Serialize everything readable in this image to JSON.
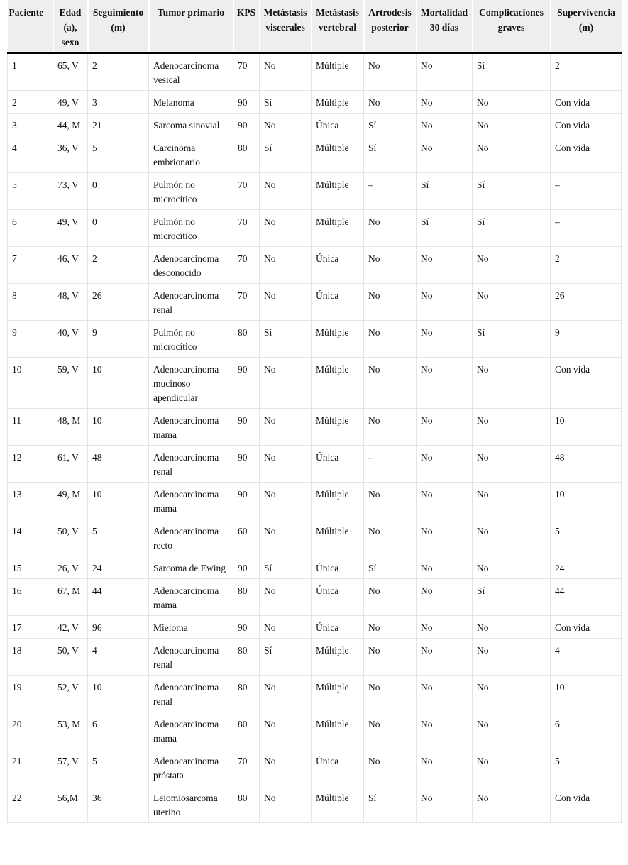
{
  "headers": [
    "Paciente",
    "Edad (a), sexo",
    "Seguimiento (m)",
    "Tumor primario",
    "KPS",
    "Metástasis viscerales",
    "Metástasis vertebral",
    "Artrodesis posterior",
    "Mortalidad 30 días",
    "Complicaciones graves",
    "Supervivencia (m)"
  ],
  "rows": [
    [
      "1",
      "65, V",
      "2",
      "Adenocarcinoma vesical",
      "70",
      "No",
      "Múltiple",
      "No",
      "No",
      "Sí",
      "2"
    ],
    [
      "2",
      "49, V",
      "3",
      "Melanoma",
      "90",
      "Sí",
      "Múltiple",
      "No",
      "No",
      "No",
      "Con vida"
    ],
    [
      "3",
      "44, M",
      "21",
      "Sarcoma sinovial",
      "90",
      "No",
      "Única",
      "Sí",
      "No",
      "No",
      "Con vida"
    ],
    [
      "4",
      "36, V",
      "5",
      "Carcinoma embrionario",
      "80",
      "Sí",
      "Múltiple",
      "Sí",
      "No",
      "No",
      "Con vida"
    ],
    [
      "5",
      "73, V",
      "0",
      "Pulmón no microcítico",
      "70",
      "No",
      "Múltiple",
      "–",
      "Sí",
      "Sí",
      "–"
    ],
    [
      "6",
      "49, V",
      "0",
      "Pulmón no microcítico",
      "70",
      "No",
      "Múltiple",
      "No",
      "Sí",
      "Sí",
      "–"
    ],
    [
      "7",
      "46, V",
      "2",
      "Adenocarcinoma desconocido",
      "70",
      "No",
      "Única",
      "No",
      "No",
      "No",
      "2"
    ],
    [
      "8",
      "48, V",
      "26",
      "Adenocarcinoma renal",
      "70",
      "No",
      "Única",
      "No",
      "No",
      "No",
      "26"
    ],
    [
      "9",
      "40, V",
      "9",
      "Pulmón no microcítico",
      "80",
      "Sí",
      "Múltiple",
      "No",
      "No",
      "Sí",
      "9"
    ],
    [
      "10",
      "59, V",
      "10",
      "Adenocarcinoma mucinoso apendicular",
      "90",
      "No",
      "Múltiple",
      "No",
      "No",
      "No",
      "Con vida"
    ],
    [
      "11",
      "48, M",
      "10",
      "Adenocarcinoma mama",
      "90",
      "No",
      "Múltiple",
      "No",
      "No",
      "No",
      "10"
    ],
    [
      "12",
      "61, V",
      "48",
      "Adenocarcinoma renal",
      "90",
      "No",
      "Única",
      "–",
      "No",
      "No",
      "48"
    ],
    [
      "13",
      "49, M",
      "10",
      "Adenocarcinoma mama",
      "90",
      "No",
      "Múltiple",
      "No",
      "No",
      "No",
      "10"
    ],
    [
      "14",
      "50, V",
      "5",
      "Adenocarcinoma recto",
      "60",
      "No",
      "Múltiple",
      "No",
      "No",
      "No",
      "5"
    ],
    [
      "15",
      "26, V",
      "24",
      "Sarcoma de Ewing",
      "90",
      "Sí",
      "Única",
      "Sí",
      "No",
      "No",
      "24"
    ],
    [
      "16",
      "67, M",
      "44",
      "Adenocarcinoma mama",
      "80",
      "No",
      "Única",
      "No",
      "No",
      "Sí",
      "44"
    ],
    [
      "17",
      "42, V",
      "96",
      "Mieloma",
      "90",
      "No",
      "Única",
      "No",
      "No",
      "No",
      "Con vida"
    ],
    [
      "18",
      "50, V",
      "4",
      "Adenocarcinoma renal",
      "80",
      "Sí",
      "Múltiple",
      "No",
      "No",
      "No",
      "4"
    ],
    [
      "19",
      "52, V",
      "10",
      "Adenocarcinoma renal",
      "80",
      "No",
      "Múltiple",
      "No",
      "No",
      "No",
      "10"
    ],
    [
      "20",
      "53, M",
      "6",
      "Adenocarcinoma mama",
      "80",
      "No",
      "Múltiple",
      "No",
      "No",
      "No",
      "6"
    ],
    [
      "21",
      "57, V",
      "5",
      "Adenocarcinoma próstata",
      "70",
      "No",
      "Única",
      "No",
      "No",
      "No",
      "5"
    ],
    [
      "22",
      "56,M",
      "36",
      "Leiomiosarcoma uterino",
      "80",
      "No",
      "Múltiple",
      "Sí",
      "No",
      "No",
      "Con vida"
    ]
  ]
}
